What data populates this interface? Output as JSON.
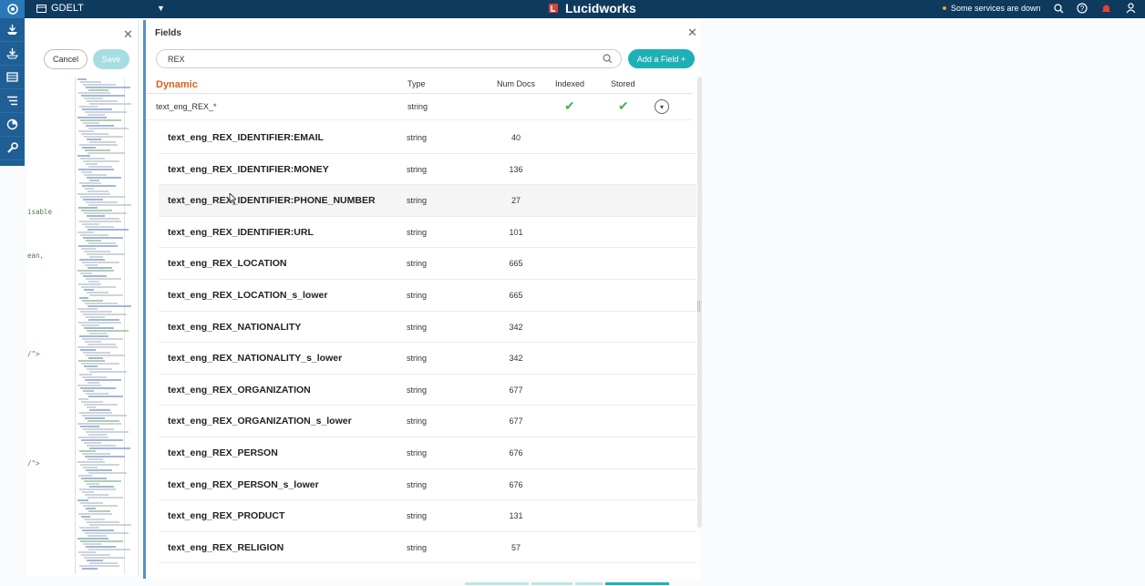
{
  "topbar": {
    "app_name": "GDELT",
    "brand": "Lucidworks",
    "status": "Some services are down"
  },
  "rail": {
    "items": [
      "index-icon",
      "query-icon",
      "collections-icon",
      "list-icon",
      "analytics-icon",
      "system-icon"
    ]
  },
  "left_panel": {
    "cancel_label": "Cancel",
    "save_label": "Save",
    "code_fragments": [
      "isable",
      "ean,",
      "/\">",
      "/\">"
    ]
  },
  "fields_panel": {
    "title": "Fields",
    "search_value": "REX",
    "add_button": "Add a Field +",
    "columns": {
      "dynamic": "Dynamic",
      "type": "Type",
      "num_docs": "Num Docs",
      "indexed": "Indexed",
      "stored": "Stored"
    },
    "dynamic_row": {
      "name": "text_eng_REX_*",
      "type": "string",
      "indexed": "✔",
      "stored": "✔"
    },
    "rows": [
      {
        "name": "text_eng_REX_IDENTIFIER:EMAIL",
        "type": "string",
        "num": "40"
      },
      {
        "name": "text_eng_REX_IDENTIFIER:MONEY",
        "type": "string",
        "num": "136"
      },
      {
        "name": "text_eng_REX_IDENTIFIER:PHONE_NUMBER",
        "type": "string",
        "num": "27"
      },
      {
        "name": "text_eng_REX_IDENTIFIER:URL",
        "type": "string",
        "num": "101"
      },
      {
        "name": "text_eng_REX_LOCATION",
        "type": "string",
        "num": "665"
      },
      {
        "name": "text_eng_REX_LOCATION_s_lower",
        "type": "string",
        "num": "665"
      },
      {
        "name": "text_eng_REX_NATIONALITY",
        "type": "string",
        "num": "342"
      },
      {
        "name": "text_eng_REX_NATIONALITY_s_lower",
        "type": "string",
        "num": "342"
      },
      {
        "name": "text_eng_REX_ORGANIZATION",
        "type": "string",
        "num": "677"
      },
      {
        "name": "text_eng_REX_ORGANIZATION_s_lower",
        "type": "string",
        "num": "677"
      },
      {
        "name": "text_eng_REX_PERSON",
        "type": "string",
        "num": "676"
      },
      {
        "name": "text_eng_REX_PERSON_s_lower",
        "type": "string",
        "num": "676"
      },
      {
        "name": "text_eng_REX_PRODUCT",
        "type": "string",
        "num": "131"
      },
      {
        "name": "text_eng_REX_RELIGION",
        "type": "string",
        "num": "57"
      }
    ]
  },
  "colors": {
    "topbar": "#0e3a5e",
    "rail": "#1f5f95",
    "accent": "#1fb0b6",
    "dynamic": "#d9601a",
    "check": "#4caf50"
  }
}
